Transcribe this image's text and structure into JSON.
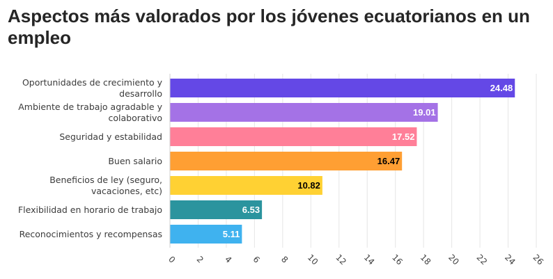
{
  "chart_data": {
    "type": "bar",
    "orientation": "horizontal",
    "title": "Aspectos más valorados por los jóvenes ecuatorianos en un empleo",
    "categories": [
      [
        "Oportunidades de crecimiento y",
        "desarrollo"
      ],
      [
        "Ambiente de trabajo agradable y",
        "colaborativo"
      ],
      [
        "Seguridad y estabilidad"
      ],
      [
        "Buen salario"
      ],
      [
        "Beneficios de ley (seguro,",
        "vacaciones, etc)"
      ],
      [
        "Flexibilidad en horario de trabajo"
      ],
      [
        "Reconocimientos y recompensas"
      ]
    ],
    "values": [
      24.48,
      19.01,
      17.52,
      16.47,
      10.82,
      6.53,
      5.11
    ],
    "value_labels": [
      "24.48",
      "19.01",
      "17.52",
      "16.47",
      "10.82",
      "6.53",
      "5.11"
    ],
    "colors": [
      "#6448e6",
      "#a472e6",
      "#ff7f98",
      "#ff9f33",
      "#ffd133",
      "#2b949e",
      "#3fb2ef"
    ],
    "label_colors": [
      "#ffffff",
      "#ffffff",
      "#ffffff",
      "#000000",
      "#000000",
      "#ffffff",
      "#ffffff"
    ],
    "xlim": [
      0,
      26
    ],
    "xticks": [
      0,
      2,
      4,
      6,
      8,
      10,
      12,
      14,
      16,
      18,
      20,
      22,
      24,
      26
    ],
    "grid": true,
    "legend": "none"
  }
}
